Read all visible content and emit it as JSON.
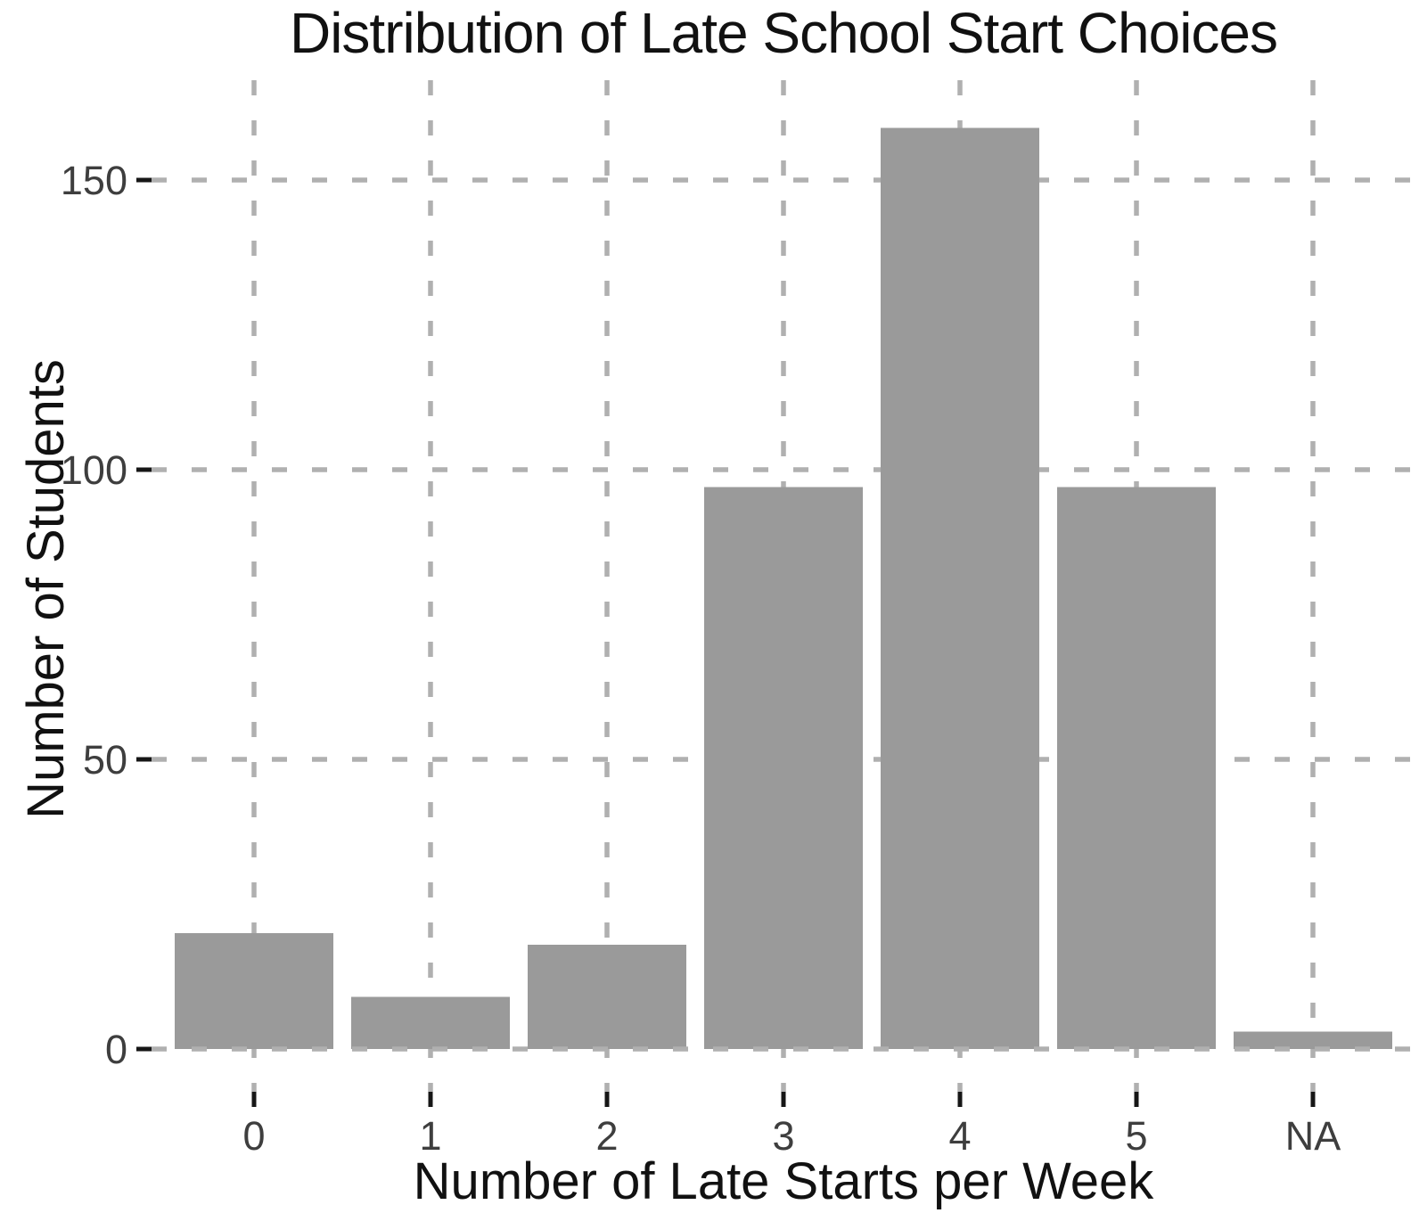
{
  "chart_data": {
    "type": "bar",
    "title": "Distribution of Late School Start Choices",
    "xlabel": "Number of Late Starts per Week",
    "ylabel": "Number of Students",
    "categories": [
      "0",
      "1",
      "2",
      "3",
      "4",
      "5",
      "NA"
    ],
    "values": [
      20,
      9,
      18,
      97,
      159,
      97,
      3
    ],
    "yticks": [
      0,
      50,
      100,
      150
    ],
    "ylim": [
      0,
      167
    ],
    "bar_relative_width": 0.9,
    "grid": {
      "visible": true,
      "style": "dashed",
      "horizontal_at": [
        0,
        50,
        100,
        150
      ],
      "vertical_at_each_category": true,
      "baseline_drawn_over_bars": true
    },
    "legend_position": "none",
    "colors": {
      "bar": "#9a9a9a",
      "grid": "#b0b0b0",
      "tick": "#161616",
      "tick_label": "#3e3e3e",
      "text": "#111111",
      "background": "#ffffff"
    }
  }
}
